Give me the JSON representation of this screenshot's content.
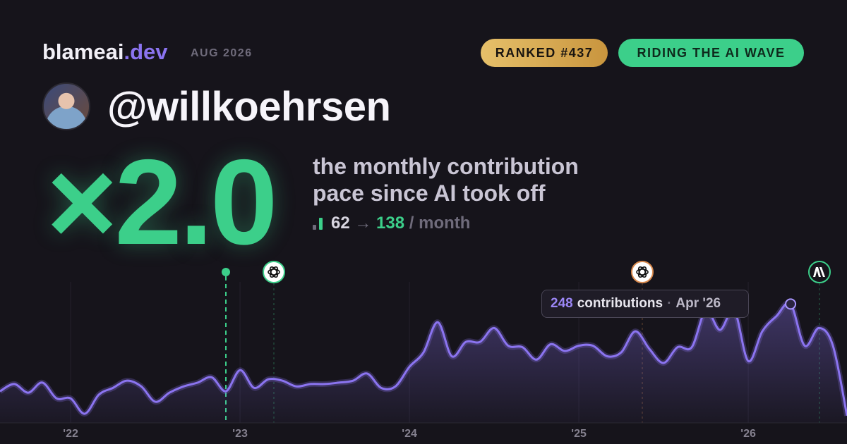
{
  "brand": {
    "name": "blameai",
    "tld": ".dev",
    "period": "AUG 2026"
  },
  "badges": [
    "RANKED #437",
    "RIDING THE AI WAVE"
  ],
  "handle": "@willkoehrsen",
  "multiplier": "×2.0",
  "description": [
    "the monthly contribution",
    "pace since AI took off"
  ],
  "stat": {
    "before": 62,
    "arrow": "→",
    "after": 138,
    "unit": "/ month"
  },
  "tooltip": {
    "unit": "contributions",
    "separator": "·",
    "date": "Apr '26"
  },
  "chart_data": {
    "type": "area",
    "x": [
      2021.583,
      2021.667,
      2021.75,
      2021.833,
      2021.917,
      2022,
      2022.083,
      2022.167,
      2022.25,
      2022.333,
      2022.417,
      2022.5,
      2022.583,
      2022.667,
      2022.75,
      2022.833,
      2022.917,
      2023,
      2023.083,
      2023.167,
      2023.25,
      2023.333,
      2023.417,
      2023.5,
      2023.583,
      2023.667,
      2023.75,
      2023.833,
      2023.917,
      2024,
      2024.083,
      2024.167,
      2024.25,
      2024.333,
      2024.417,
      2024.5,
      2024.583,
      2024.667,
      2024.75,
      2024.833,
      2024.917,
      2025,
      2025.083,
      2025.167,
      2025.25,
      2025.333,
      2025.417,
      2025.5,
      2025.583,
      2025.667,
      2025.75,
      2025.833,
      2025.917,
      2026,
      2026.083,
      2026.167,
      2026.25,
      2026.333,
      2026.417,
      2026.5,
      2026.583
    ],
    "values": [
      66,
      81,
      63,
      84,
      51,
      51,
      19,
      59,
      73,
      88,
      76,
      44,
      63,
      76,
      84,
      95,
      66,
      110,
      73,
      91,
      88,
      76,
      81,
      81,
      84,
      88,
      103,
      73,
      76,
      117,
      147,
      210,
      139,
      169,
      169,
      198,
      161,
      158,
      132,
      164,
      150,
      161,
      161,
      139,
      147,
      191,
      154,
      125,
      158,
      158,
      235,
      194,
      235,
      129,
      191,
      223,
      248,
      161,
      198,
      161,
      15
    ],
    "color": "#8b74f0",
    "xlim": [
      2021.583,
      2026.583
    ],
    "ylim": [
      0,
      300
    ],
    "xticks": [
      {
        "value": 2022,
        "label": "'22"
      },
      {
        "value": 2023,
        "label": "'23"
      },
      {
        "value": 2024,
        "label": "'24"
      },
      {
        "value": 2025,
        "label": "'25"
      },
      {
        "value": 2026,
        "label": "'26"
      }
    ],
    "grid": true
  }
}
